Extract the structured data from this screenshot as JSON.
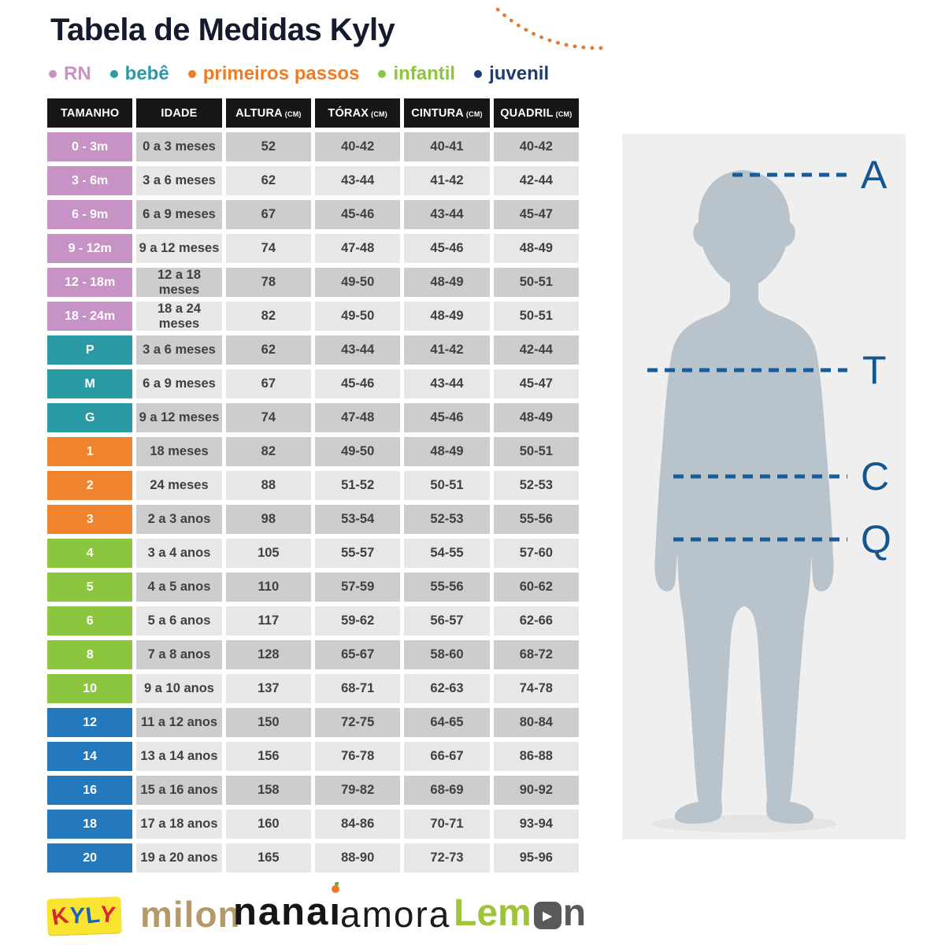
{
  "title": "Tabela de Medidas Kyly",
  "accent_colors": {
    "rn": "#c792c5",
    "bebe": "#2a9aa4",
    "primeiros_passos": "#f0832d",
    "infantil": "#8cc63e",
    "juvenil_row": "#2478bc",
    "juvenil_text": "#1e3c72",
    "measure_line": "#1a5c99",
    "measure_label": "#15568f",
    "silhouette": "#b9c3cc"
  },
  "legend": [
    {
      "label": "RN",
      "color": "#c792c5"
    },
    {
      "label": "bebê",
      "color": "#2a9aa4"
    },
    {
      "label": "primeiros passos",
      "color": "#ee7c24"
    },
    {
      "label": "infantil",
      "color": "#8cc63e"
    },
    {
      "label": "juvenil",
      "color": "#1e3c72"
    }
  ],
  "table": {
    "headers": [
      {
        "label": "TAMANHO",
        "unit": ""
      },
      {
        "label": "IDADE",
        "unit": ""
      },
      {
        "label": "ALTURA",
        "unit": "(CM)"
      },
      {
        "label": "TÓRAX",
        "unit": "(CM)"
      },
      {
        "label": "CINTURA",
        "unit": "(CM)"
      },
      {
        "label": "QUADRIL",
        "unit": "(CM)"
      }
    ],
    "rows": [
      {
        "size": "0 - 3m",
        "category": "rn",
        "shade": "dark",
        "idade": "0 a 3 meses",
        "altura": "52",
        "torax": "40-42",
        "cintura": "40-41",
        "quadril": "40-42"
      },
      {
        "size": "3 - 6m",
        "category": "rn",
        "shade": "light",
        "idade": "3 a 6 meses",
        "altura": "62",
        "torax": "43-44",
        "cintura": "41-42",
        "quadril": "42-44"
      },
      {
        "size": "6 - 9m",
        "category": "rn",
        "shade": "dark",
        "idade": "6 a 9 meses",
        "altura": "67",
        "torax": "45-46",
        "cintura": "43-44",
        "quadril": "45-47"
      },
      {
        "size": "9 - 12m",
        "category": "rn",
        "shade": "light",
        "idade": "9 a 12 meses",
        "altura": "74",
        "torax": "47-48",
        "cintura": "45-46",
        "quadril": "48-49"
      },
      {
        "size": "12 - 18m",
        "category": "rn",
        "shade": "dark",
        "idade": "12 a 18 meses",
        "altura": "78",
        "torax": "49-50",
        "cintura": "48-49",
        "quadril": "50-51"
      },
      {
        "size": "18 - 24m",
        "category": "rn",
        "shade": "light",
        "idade": "18 a 24 meses",
        "altura": "82",
        "torax": "49-50",
        "cintura": "48-49",
        "quadril": "50-51"
      },
      {
        "size": "P",
        "category": "bebe",
        "shade": "dark",
        "idade": "3 a 6 meses",
        "altura": "62",
        "torax": "43-44",
        "cintura": "41-42",
        "quadril": "42-44"
      },
      {
        "size": "M",
        "category": "bebe",
        "shade": "light",
        "idade": "6 a 9 meses",
        "altura": "67",
        "torax": "45-46",
        "cintura": "43-44",
        "quadril": "45-47"
      },
      {
        "size": "G",
        "category": "bebe",
        "shade": "dark",
        "idade": "9 a 12 meses",
        "altura": "74",
        "torax": "47-48",
        "cintura": "45-46",
        "quadril": "48-49"
      },
      {
        "size": "1",
        "category": "pp",
        "shade": "dark",
        "idade": "18 meses",
        "altura": "82",
        "torax": "49-50",
        "cintura": "48-49",
        "quadril": "50-51"
      },
      {
        "size": "2",
        "category": "pp",
        "shade": "light",
        "idade": "24 meses",
        "altura": "88",
        "torax": "51-52",
        "cintura": "50-51",
        "quadril": "52-53"
      },
      {
        "size": "3",
        "category": "pp",
        "shade": "dark",
        "idade": "2 a 3 anos",
        "altura": "98",
        "torax": "53-54",
        "cintura": "52-53",
        "quadril": "55-56"
      },
      {
        "size": "4",
        "category": "inf",
        "shade": "light",
        "idade": "3 a 4 anos",
        "altura": "105",
        "torax": "55-57",
        "cintura": "54-55",
        "quadril": "57-60"
      },
      {
        "size": "5",
        "category": "inf",
        "shade": "dark",
        "idade": "4 a 5 anos",
        "altura": "110",
        "torax": "57-59",
        "cintura": "55-56",
        "quadril": "60-62"
      },
      {
        "size": "6",
        "category": "inf",
        "shade": "light",
        "idade": "5 a 6 anos",
        "altura": "117",
        "torax": "59-62",
        "cintura": "56-57",
        "quadril": "62-66"
      },
      {
        "size": "8",
        "category": "inf",
        "shade": "dark",
        "idade": "7 a 8 anos",
        "altura": "128",
        "torax": "65-67",
        "cintura": "58-60",
        "quadril": "68-72"
      },
      {
        "size": "10",
        "category": "inf",
        "shade": "light",
        "idade": "9 a 10 anos",
        "altura": "137",
        "torax": "68-71",
        "cintura": "62-63",
        "quadril": "74-78"
      },
      {
        "size": "12",
        "category": "juv",
        "shade": "dark",
        "idade": "11 a 12 anos",
        "altura": "150",
        "torax": "72-75",
        "cintura": "64-65",
        "quadril": "80-84"
      },
      {
        "size": "14",
        "category": "juv",
        "shade": "light",
        "idade": "13 a 14 anos",
        "altura": "156",
        "torax": "76-78",
        "cintura": "66-67",
        "quadril": "86-88"
      },
      {
        "size": "16",
        "category": "juv",
        "shade": "dark",
        "idade": "15 a 16 anos",
        "altura": "158",
        "torax": "79-82",
        "cintura": "68-69",
        "quadril": "90-92"
      },
      {
        "size": "18",
        "category": "juv",
        "shade": "light",
        "idade": "17 a 18 anos",
        "altura": "160",
        "torax": "84-86",
        "cintura": "70-71",
        "quadril": "93-94"
      },
      {
        "size": "20",
        "category": "juv",
        "shade": "light",
        "idade": "19 a 20 anos",
        "altura": "165",
        "torax": "88-90",
        "cintura": "72-73",
        "quadril": "95-96"
      }
    ]
  },
  "figure": {
    "labels": {
      "altura": "A",
      "torax": "T",
      "cintura": "C",
      "quadril": "Q"
    }
  },
  "footer": {
    "kyly_letters": [
      {
        "ch": "K",
        "color": "#d7282f"
      },
      {
        "ch": "Y",
        "color": "#1e63b4"
      },
      {
        "ch": "L",
        "color": "#1e63b4"
      },
      {
        "ch": "Y",
        "color": "#d7282f"
      }
    ],
    "milon": "milon",
    "nanai_base": "nana",
    "nanai_i": "ı",
    "amora": "amora",
    "lemon_pre": "Lem",
    "lemon_play": "▶",
    "lemon_post": "n"
  }
}
